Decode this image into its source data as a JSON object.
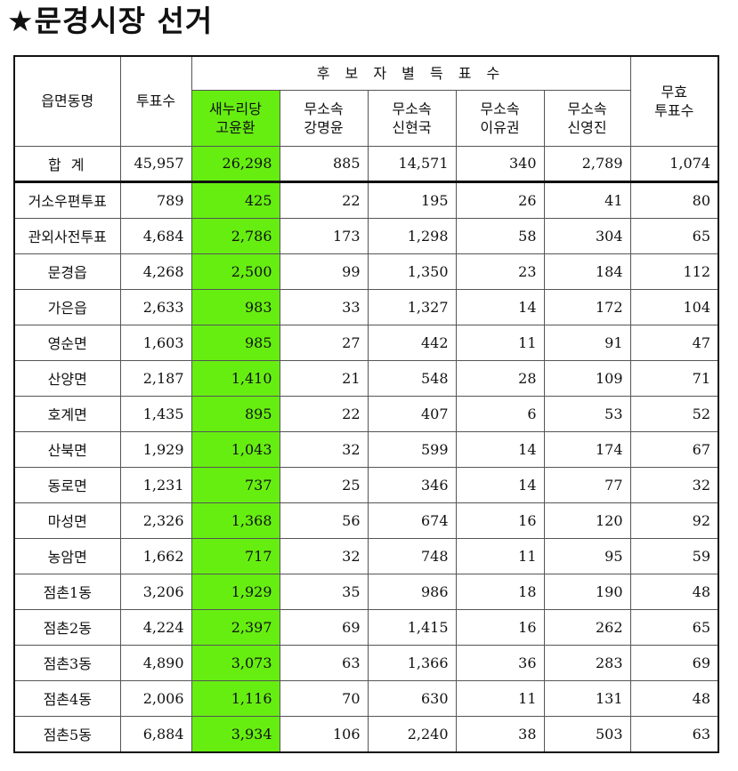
{
  "title": "★문경시장 선거",
  "headers": {
    "district": "읍면동명",
    "total_votes": "투표수",
    "group": "후 보 자 별 득 표 수",
    "invalid": [
      "무효",
      "투표수"
    ]
  },
  "candidates": [
    {
      "party": "새누리당",
      "name": "고윤환"
    },
    {
      "party": "무소속",
      "name": "강명윤"
    },
    {
      "party": "무소속",
      "name": "신현국"
    },
    {
      "party": "무소속",
      "name": "이유권"
    },
    {
      "party": "무소속",
      "name": "신영진"
    }
  ],
  "highlight_color": "#66ee11",
  "total": {
    "label": "합 계",
    "cells": [
      "45,957",
      "26,298",
      "885",
      "14,571",
      "340",
      "2,789",
      "1,074"
    ]
  },
  "rows": [
    {
      "name": "거소우편투표",
      "cells": [
        "789",
        "425",
        "22",
        "195",
        "26",
        "41",
        "80"
      ]
    },
    {
      "name": "관외사전투표",
      "cells": [
        "4,684",
        "2,786",
        "173",
        "1,298",
        "58",
        "304",
        "65"
      ]
    },
    {
      "name": "문경읍",
      "cells": [
        "4,268",
        "2,500",
        "99",
        "1,350",
        "23",
        "184",
        "112"
      ]
    },
    {
      "name": "가은읍",
      "cells": [
        "2,633",
        "983",
        "33",
        "1,327",
        "14",
        "172",
        "104"
      ]
    },
    {
      "name": "영순면",
      "cells": [
        "1,603",
        "985",
        "27",
        "442",
        "11",
        "91",
        "47"
      ]
    },
    {
      "name": "산양면",
      "cells": [
        "2,187",
        "1,410",
        "21",
        "548",
        "28",
        "109",
        "71"
      ]
    },
    {
      "name": "호계면",
      "cells": [
        "1,435",
        "895",
        "22",
        "407",
        "6",
        "53",
        "52"
      ]
    },
    {
      "name": "산북면",
      "cells": [
        "1,929",
        "1,043",
        "32",
        "599",
        "14",
        "174",
        "67"
      ]
    },
    {
      "name": "동로면",
      "cells": [
        "1,231",
        "737",
        "25",
        "346",
        "14",
        "77",
        "32"
      ]
    },
    {
      "name": "마성면",
      "cells": [
        "2,326",
        "1,368",
        "56",
        "674",
        "16",
        "120",
        "92"
      ]
    },
    {
      "name": "농암면",
      "cells": [
        "1,662",
        "717",
        "32",
        "748",
        "11",
        "95",
        "59"
      ]
    },
    {
      "name": "점촌1동",
      "cells": [
        "3,206",
        "1,929",
        "35",
        "986",
        "18",
        "190",
        "48"
      ]
    },
    {
      "name": "점촌2동",
      "cells": [
        "4,224",
        "2,397",
        "69",
        "1,415",
        "16",
        "262",
        "65"
      ]
    },
    {
      "name": "점촌3동",
      "cells": [
        "4,890",
        "3,073",
        "63",
        "1,366",
        "36",
        "283",
        "69"
      ]
    },
    {
      "name": "점촌4동",
      "cells": [
        "2,006",
        "1,116",
        "70",
        "630",
        "11",
        "131",
        "48"
      ]
    },
    {
      "name": "점촌5동",
      "cells": [
        "6,884",
        "3,934",
        "106",
        "2,240",
        "38",
        "503",
        "63"
      ]
    }
  ]
}
